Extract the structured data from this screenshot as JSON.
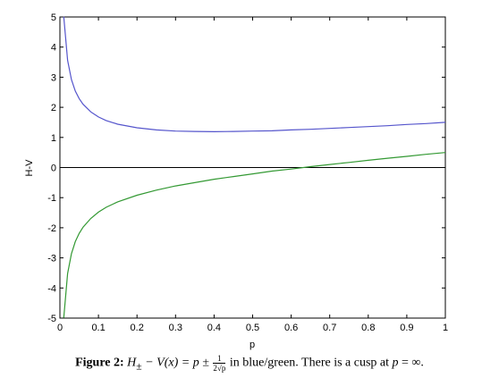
{
  "chart_data": {
    "type": "line",
    "xlabel": "p",
    "ylabel": "H-V",
    "xlim": [
      0,
      1
    ],
    "ylim": [
      -5,
      5
    ],
    "xticks": [
      "0",
      "0.1",
      "0.2",
      "0.3",
      "0.4",
      "0.5",
      "0.6",
      "0.7",
      "0.8",
      "0.9",
      "1"
    ],
    "yticks": [
      "5",
      "4",
      "3",
      "2",
      "1",
      "0",
      "-1",
      "-2",
      "-3",
      "-4",
      "-5"
    ],
    "series": [
      {
        "color": "#5555cc",
        "x": [
          0.01,
          0.02,
          0.03,
          0.04,
          0.05,
          0.06,
          0.08,
          0.1,
          0.12,
          0.15,
          0.2,
          0.25,
          0.3,
          0.35,
          0.4,
          0.45,
          0.5,
          0.55,
          0.6,
          0.65,
          0.7,
          0.75,
          0.8,
          0.85,
          0.9,
          0.95,
          1.0
        ],
        "y": [
          5.01,
          3.56,
          2.92,
          2.54,
          2.29,
          2.1,
          1.85,
          1.68,
          1.56,
          1.44,
          1.32,
          1.25,
          1.21,
          1.2,
          1.19,
          1.2,
          1.21,
          1.22,
          1.25,
          1.27,
          1.3,
          1.33,
          1.36,
          1.39,
          1.43,
          1.46,
          1.5
        ]
      },
      {
        "color": "#339933",
        "x": [
          0.01,
          0.02,
          0.03,
          0.04,
          0.05,
          0.06,
          0.08,
          0.1,
          0.12,
          0.15,
          0.2,
          0.25,
          0.3,
          0.35,
          0.4,
          0.45,
          0.5,
          0.55,
          0.6,
          0.65,
          0.7,
          0.75,
          0.8,
          0.85,
          0.9,
          0.95,
          1.0
        ],
        "y": [
          -4.99,
          -3.52,
          -2.86,
          -2.46,
          -2.19,
          -1.98,
          -1.69,
          -1.48,
          -1.32,
          -1.14,
          -0.92,
          -0.75,
          -0.61,
          -0.5,
          -0.39,
          -0.3,
          -0.21,
          -0.12,
          -0.05,
          0.03,
          0.1,
          0.17,
          0.24,
          0.31,
          0.37,
          0.44,
          0.5
        ]
      }
    ],
    "zero_line": 0
  },
  "caption": {
    "label": "Figure 2:",
    "eq_lhs": "H",
    "eq_sub": "±",
    "eq_mid": " − V(x) = p ±",
    "frac_num": "1",
    "frac_den": "2√p",
    "text1": " in blue/green. There is a cusp at ",
    "eq_p": "p",
    "eq_inf": " = ∞."
  }
}
